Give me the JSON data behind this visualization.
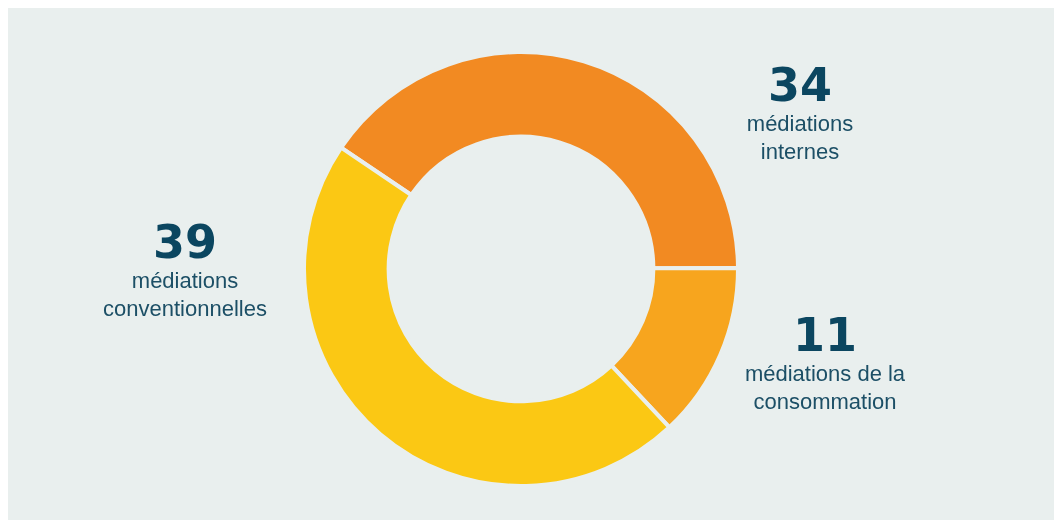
{
  "chart_data": {
    "type": "donut",
    "categories": [
      "médiations internes",
      "médiations de la consommation",
      "médiations conventionnelles"
    ],
    "values": [
      34,
      11,
      39
    ],
    "colors": [
      "#f28a22",
      "#f7a51e",
      "#fbc814"
    ],
    "data_labels": true,
    "legend": false
  }
}
